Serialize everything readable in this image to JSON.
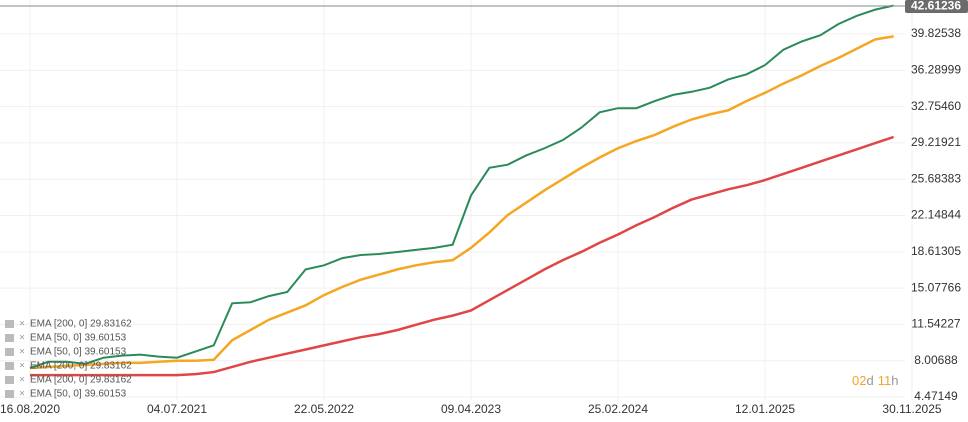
{
  "chart_data": {
    "type": "line",
    "last_price": "42.61236",
    "countdown": [
      "02",
      "d",
      "11",
      "h"
    ],
    "legend_entries": [
      "EMA [200, 0] 29.83162",
      "EMA [50, 0] 39.60153",
      "EMA [50, 0] 39.60153",
      "EMA [200, 0] 29.83162",
      "EMA [200, 0] 29.83162",
      "EMA [50, 0] 39.60153"
    ],
    "categories": [
      "16.08.2020",
      null,
      null,
      null,
      null,
      null,
      null,
      null,
      "04.07.2021",
      null,
      null,
      null,
      null,
      null,
      null,
      null,
      "22.05.2022",
      null,
      null,
      null,
      null,
      null,
      null,
      null,
      "09.04.2023",
      null,
      null,
      null,
      null,
      null,
      null,
      null,
      "25.02.2024",
      null,
      null,
      null,
      null,
      null,
      null,
      null,
      "12.01.2025",
      null,
      null,
      null,
      null,
      null,
      null,
      null,
      "30.11.2025"
    ],
    "series": [
      {
        "color": "#e04646",
        "values": [
          6.6,
          6.6,
          6.6,
          6.6,
          6.6,
          6.6,
          6.6,
          6.6,
          6.6,
          6.7,
          6.9,
          7.4,
          7.9,
          8.3,
          8.7,
          9.1,
          9.5,
          9.9,
          10.3,
          10.6,
          11.0,
          11.5,
          12.0,
          12.4,
          12.9,
          13.9,
          14.9,
          15.9,
          16.9,
          17.8,
          18.6,
          19.5,
          20.3,
          21.2,
          22.0,
          22.9,
          23.7,
          24.2,
          24.7,
          25.1,
          25.6,
          26.2,
          26.8,
          27.4,
          28.0,
          28.6,
          29.2,
          29.8,
          null
        ]
      },
      {
        "color": "#f5a623",
        "values": [
          7.3,
          7.4,
          7.5,
          7.6,
          7.7,
          7.8,
          7.8,
          7.9,
          8.0,
          8.0,
          8.1,
          10.0,
          11.0,
          12.0,
          12.7,
          13.4,
          14.4,
          15.2,
          15.9,
          16.4,
          16.9,
          17.3,
          17.6,
          17.8,
          19.0,
          20.5,
          22.2,
          23.4,
          24.6,
          25.7,
          26.8,
          27.8,
          28.7,
          29.4,
          30.0,
          30.8,
          31.5,
          32.0,
          32.4,
          33.3,
          34.1,
          35.0,
          35.8,
          36.7,
          37.5,
          38.4,
          39.3,
          39.6,
          null
        ]
      },
      {
        "color": "#2a8a5a",
        "values": [
          7.3,
          7.9,
          7.9,
          7.7,
          8.3,
          8.5,
          8.6,
          8.4,
          8.3,
          8.9,
          9.5,
          13.6,
          13.7,
          14.3,
          14.7,
          16.9,
          17.3,
          18.0,
          18.3,
          18.4,
          18.6,
          18.8,
          19.0,
          19.3,
          24.1,
          26.8,
          27.1,
          28.0,
          28.7,
          29.5,
          30.7,
          32.2,
          32.6,
          32.6,
          33.3,
          33.9,
          34.2,
          34.6,
          35.4,
          35.9,
          36.8,
          38.3,
          39.1,
          39.7,
          40.8,
          41.6,
          42.2,
          42.6,
          null
        ]
      }
    ],
    "ylim": [
      4.18,
      43.14
    ],
    "yticks": [
      4.47149,
      8.00688,
      11.54227,
      15.07766,
      18.61305,
      22.14844,
      25.68383,
      29.21921,
      {
        "value": 32.7546,
        "label": "32.75460"
      },
      36.28999,
      39.82538
    ],
    "grid": true
  }
}
